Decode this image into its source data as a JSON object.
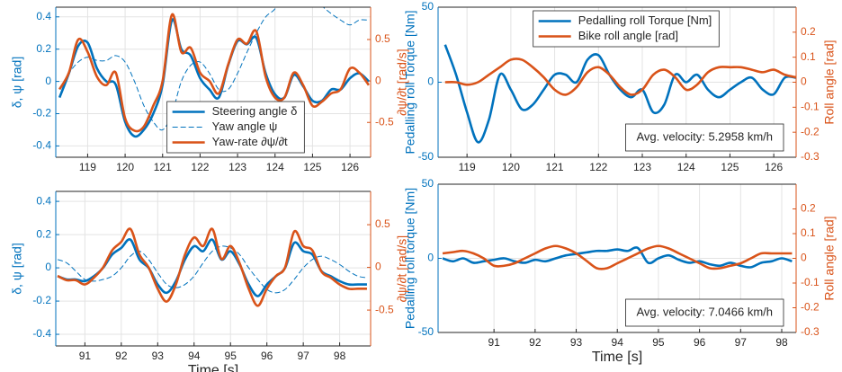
{
  "chart_data": [
    {
      "type": "line",
      "legend": "lower center",
      "grid": true,
      "ylabel": "δ, ψ [rad]",
      "y2label": "∂ψ/∂t [rad/s]",
      "x": [
        118.25,
        118.5,
        118.75,
        119,
        119.25,
        119.5,
        119.75,
        120,
        120.25,
        120.5,
        120.75,
        121,
        121.25,
        121.5,
        121.75,
        122,
        122.25,
        122.5,
        122.75,
        123,
        123.25,
        123.5,
        123.75,
        124,
        124.25,
        124.5,
        124.75,
        125,
        125.25,
        125.5,
        125.75,
        126,
        126.25,
        126.5
      ],
      "xlim": [
        118.15,
        126.55
      ],
      "xticks": [
        119,
        120,
        121,
        122,
        123,
        124,
        125,
        126
      ],
      "ylim": [
        -0.47,
        0.46
      ],
      "yticks": [
        -0.4,
        -0.2,
        0,
        0.2,
        0.4
      ],
      "y2lim": [
        -0.92,
        0.89
      ],
      "y2ticks": [
        -0.5,
        0,
        0.5
      ],
      "series": [
        {
          "name": "Steering angle δ",
          "color": "#0072bd",
          "linestyle": "solid",
          "values": [
            -0.1,
            0.05,
            0.22,
            0.24,
            0.08,
            0.0,
            -0.02,
            -0.25,
            -0.34,
            -0.3,
            -0.2,
            -0.02,
            0.38,
            0.2,
            0.16,
            0.02,
            -0.05,
            -0.1,
            0.1,
            0.25,
            0.23,
            0.27,
            0.05,
            -0.08,
            -0.1,
            0.04,
            -0.03,
            -0.12,
            -0.12,
            -0.05,
            -0.05,
            0.02,
            0.05,
            0.0
          ]
        },
        {
          "name": "Yaw angle ψ",
          "color": "#0072bd",
          "linestyle": "dashed",
          "values": [
            -0.05,
            0.05,
            0.12,
            0.15,
            0.13,
            0.13,
            0.16,
            0.12,
            0.0,
            -0.15,
            -0.25,
            -0.3,
            -0.2,
            0.0,
            0.1,
            0.12,
            0.05,
            -0.05,
            -0.05,
            0.05,
            0.18,
            0.3,
            0.4,
            0.45,
            0.55,
            0.6,
            0.6,
            0.55,
            0.47,
            0.42,
            0.38,
            0.35,
            0.38,
            0.38
          ]
        },
        {
          "name": "Yaw-rate ∂ψ/∂t",
          "color": "#d95319",
          "linestyle": "solid",
          "axis": "y2",
          "values": [
            -0.1,
            0.1,
            0.5,
            0.35,
            0.05,
            -0.05,
            0.1,
            -0.45,
            -0.6,
            -0.55,
            -0.3,
            0.0,
            0.8,
            0.35,
            0.4,
            0.1,
            0.0,
            -0.15,
            0.2,
            0.5,
            0.45,
            0.6,
            0.05,
            -0.2,
            -0.2,
            0.1,
            -0.05,
            -0.3,
            -0.25,
            -0.15,
            -0.1,
            0.15,
            0.1,
            -0.05
          ]
        }
      ]
    },
    {
      "type": "line",
      "grid": true,
      "xlabel": "Time [s]",
      "ylabel": "δ, ψ [rad]",
      "y2label": "∂ψ/∂t [rad/s]",
      "x": [
        90.25,
        90.5,
        90.75,
        91,
        91.25,
        91.5,
        91.75,
        92,
        92.25,
        92.5,
        92.75,
        93,
        93.25,
        93.5,
        93.75,
        94,
        94.25,
        94.5,
        94.75,
        95,
        95.25,
        95.5,
        95.75,
        96,
        96.25,
        96.5,
        96.75,
        97,
        97.25,
        97.5,
        97.75,
        98,
        98.25,
        98.5,
        98.75
      ],
      "xlim": [
        90.2,
        98.85
      ],
      "xticks": [
        91,
        92,
        93,
        94,
        95,
        96,
        97,
        98
      ],
      "ylim": [
        -0.47,
        0.46
      ],
      "yticks": [
        -0.4,
        -0.2,
        0,
        0.2,
        0.4
      ],
      "y2lim": [
        -0.92,
        0.89
      ],
      "y2ticks": [
        -0.5,
        0,
        0.5
      ],
      "series": [
        {
          "color": "#0072bd",
          "linestyle": "solid",
          "values": [
            -0.05,
            -0.07,
            -0.07,
            -0.08,
            -0.05,
            0.0,
            0.08,
            0.12,
            0.17,
            0.05,
            0.0,
            -0.1,
            -0.15,
            -0.08,
            0.05,
            0.13,
            0.1,
            0.17,
            0.05,
            0.1,
            0.02,
            -0.1,
            -0.17,
            -0.1,
            -0.05,
            0.0,
            0.15,
            0.1,
            0.08,
            -0.02,
            -0.05,
            -0.08,
            -0.1,
            -0.1,
            -0.1
          ]
        },
        {
          "color": "#0072bd",
          "linestyle": "dashed",
          "values": [
            0.05,
            0.03,
            -0.02,
            -0.07,
            -0.08,
            -0.07,
            -0.05,
            0.0,
            0.07,
            0.1,
            0.05,
            -0.03,
            -0.1,
            -0.12,
            -0.1,
            -0.05,
            0.03,
            0.1,
            0.13,
            0.12,
            0.08,
            0.0,
            -0.07,
            -0.13,
            -0.15,
            -0.13,
            -0.07,
            0.0,
            0.05,
            0.07,
            0.05,
            0.02,
            -0.02,
            -0.05,
            -0.06
          ]
        },
        {
          "color": "#d95319",
          "linestyle": "solid",
          "axis": "y2",
          "values": [
            -0.1,
            -0.15,
            -0.15,
            -0.2,
            -0.12,
            0.0,
            0.2,
            0.3,
            0.45,
            0.15,
            0.0,
            -0.25,
            -0.4,
            -0.2,
            0.15,
            0.35,
            0.25,
            0.45,
            0.1,
            0.25,
            0.05,
            -0.25,
            -0.45,
            -0.25,
            -0.1,
            0.0,
            0.42,
            0.25,
            0.2,
            -0.05,
            -0.12,
            -0.2,
            -0.25,
            -0.25,
            -0.25
          ]
        }
      ]
    },
    {
      "type": "line",
      "legend": "upper center",
      "grid": true,
      "annotation": "Avg. velocity: 5.2958 km/h",
      "ylabel": "Pedalling roll Torque [Nm]",
      "y2label": "Roll angle [rad]",
      "x": [
        118.5,
        118.75,
        119,
        119.25,
        119.5,
        119.75,
        120,
        120.25,
        120.5,
        120.75,
        121,
        121.25,
        121.5,
        121.75,
        122,
        122.25,
        122.5,
        122.75,
        123,
        123.25,
        123.5,
        123.75,
        124,
        124.25,
        124.5,
        124.75,
        125,
        125.25,
        125.5,
        125.75,
        126,
        126.25,
        126.5
      ],
      "xlim": [
        118.34,
        126.51
      ],
      "xticks": [
        119,
        120,
        121,
        122,
        123,
        124,
        125,
        126
      ],
      "ylim": [
        -50,
        50
      ],
      "yticks": [
        -50,
        0,
        50
      ],
      "y2lim": [
        -0.3,
        0.3
      ],
      "y2ticks": [
        -0.3,
        -0.2,
        -0.1,
        0,
        0.1,
        0.2
      ],
      "series": [
        {
          "name": "Pedalling roll Torque [Nm]",
          "color": "#0072bd",
          "linestyle": "solid",
          "values": [
            25,
            5,
            -20,
            -40,
            -25,
            5,
            -5,
            -18,
            -15,
            -5,
            5,
            5,
            0,
            15,
            18,
            5,
            -5,
            -10,
            -5,
            -20,
            -15,
            5,
            0,
            5,
            -5,
            -10,
            -5,
            0,
            3,
            -5,
            -8,
            3,
            3
          ]
        },
        {
          "name": "Bike roll angle [rad]",
          "color": "#d95319",
          "linestyle": "solid",
          "axis": "y2",
          "values": [
            0.0,
            0.0,
            -0.01,
            0.0,
            0.03,
            0.06,
            0.09,
            0.09,
            0.06,
            0.02,
            -0.03,
            -0.05,
            -0.02,
            0.04,
            0.06,
            0.03,
            -0.02,
            -0.05,
            -0.03,
            0.03,
            0.05,
            0.02,
            -0.03,
            -0.01,
            0.04,
            0.06,
            0.06,
            0.06,
            0.05,
            0.04,
            0.05,
            0.03,
            0.02
          ]
        }
      ]
    },
    {
      "type": "line",
      "grid": true,
      "xlabel": "Time [s]",
      "annotation": "Avg. velocity: 7.0466 km/h",
      "ylabel": "Pedalling roll torque [Nm]",
      "y2label": "Roll angle [rad]",
      "x": [
        89.75,
        90,
        90.25,
        90.5,
        90.75,
        91,
        91.25,
        91.5,
        91.75,
        92,
        92.25,
        92.5,
        92.75,
        93,
        93.25,
        93.5,
        93.75,
        94,
        94.25,
        94.5,
        94.75,
        95,
        95.25,
        95.5,
        95.75,
        96,
        96.25,
        96.5,
        96.75,
        97,
        97.25,
        97.5,
        97.75,
        98,
        98.25
      ],
      "xlim": [
        89.64,
        98.35
      ],
      "xticks": [
        91,
        92,
        93,
        94,
        95,
        96,
        97,
        98
      ],
      "ylim": [
        -50,
        50
      ],
      "yticks": [
        -50,
        0,
        50
      ],
      "y2lim": [
        -0.3,
        0.3
      ],
      "y2ticks": [
        -0.3,
        -0.2,
        -0.1,
        0,
        0.1,
        0.2
      ],
      "series": [
        {
          "color": "#0072bd",
          "linestyle": "solid",
          "values": [
            0,
            -2,
            0,
            -3,
            -2,
            -1,
            0,
            -2,
            -3,
            -1,
            -2,
            0,
            2,
            3,
            4,
            5,
            5,
            6,
            5,
            7,
            -3,
            0,
            2,
            -1,
            -3,
            -2,
            -4,
            -5,
            -3,
            -5,
            -6,
            -3,
            -2,
            0,
            -2
          ]
        },
        {
          "color": "#d95319",
          "linestyle": "solid",
          "axis": "y2",
          "values": [
            0.02,
            0.025,
            0.03,
            0.02,
            0.0,
            -0.03,
            -0.03,
            -0.02,
            0.0,
            0.02,
            0.04,
            0.05,
            0.04,
            0.02,
            -0.01,
            -0.04,
            -0.04,
            -0.02,
            0.0,
            0.02,
            0.04,
            0.05,
            0.04,
            0.02,
            0.0,
            -0.02,
            -0.04,
            -0.04,
            -0.03,
            -0.02,
            0.0,
            0.02,
            0.02,
            0.02,
            0.02
          ]
        }
      ]
    }
  ]
}
